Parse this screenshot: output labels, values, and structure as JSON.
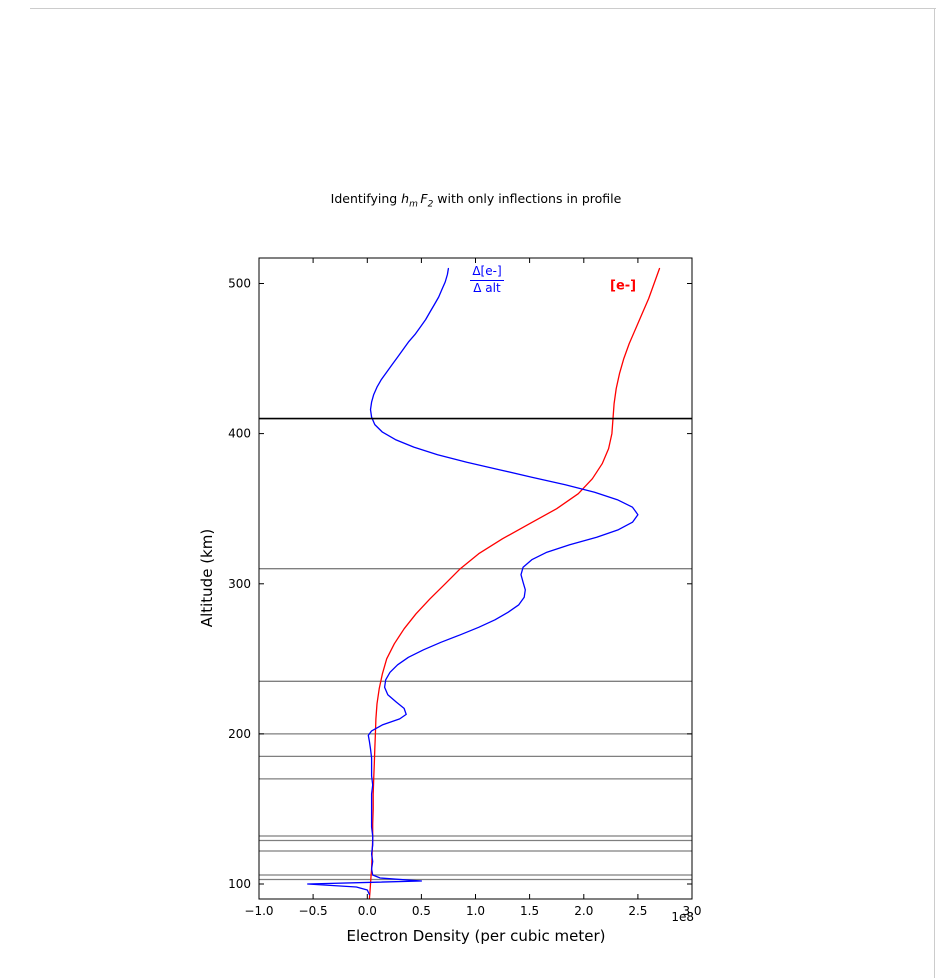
{
  "figure": {
    "title": {
      "prefix": "Identifying ",
      "var1": "h",
      "var1_sub": "m",
      "var2": "F",
      "var2_sub": "2",
      "suffix": " with only inflections in profile"
    },
    "xlabel": "Electron Density (per cubic meter)",
    "ylabel": "Altitude (km)",
    "offset_text": "1e8",
    "annotations": [
      {
        "name": "derivative-label",
        "numerator": "Δ[e-]",
        "denominator": "Δ alt",
        "color": "#0000ff"
      },
      {
        "name": "density-label",
        "text": "[e-]",
        "color": "#ff0000"
      }
    ]
  },
  "chart_data": {
    "type": "line",
    "title": "Identifying h_m F_2 with only inflections in profile",
    "xlabel": "Electron Density (per cubic meter)",
    "ylabel": "Altitude (km)",
    "x_offset_label": "1e8",
    "x_values_scale": "x values are in units of 1e8 electrons per cubic meter",
    "xlim": [
      -1.0,
      3.0
    ],
    "ylim": [
      90,
      517
    ],
    "x_ticks": [
      -1.0,
      -0.5,
      0.0,
      0.5,
      1.0,
      1.5,
      2.0,
      2.5,
      3.0
    ],
    "x_tick_labels": [
      "−1.0",
      "−0.5",
      "0.0",
      "0.5",
      "1.0",
      "1.5",
      "2.0",
      "2.5",
      "3.0"
    ],
    "y_ticks": [
      100,
      200,
      300,
      400,
      500
    ],
    "y_tick_labels": [
      "100",
      "200",
      "300",
      "400",
      "500"
    ],
    "grid": "horizontal reference lines only",
    "legend": "in-plot colored text annotations",
    "hmf2_altitude": 410,
    "inflection_altitudes": [
      310,
      235,
      200,
      185,
      170,
      132,
      129,
      122,
      106,
      103
    ],
    "series": [
      {
        "name": "[e-] electron density",
        "color": "#ff0000",
        "points": [
          [
            90,
            0.02
          ],
          [
            95,
            0.025
          ],
          [
            100,
            0.03
          ],
          [
            105,
            0.035
          ],
          [
            110,
            0.04
          ],
          [
            120,
            0.045
          ],
          [
            130,
            0.05
          ],
          [
            140,
            0.05
          ],
          [
            150,
            0.055
          ],
          [
            160,
            0.055
          ],
          [
            170,
            0.06
          ],
          [
            180,
            0.065
          ],
          [
            190,
            0.07
          ],
          [
            200,
            0.075
          ],
          [
            210,
            0.08
          ],
          [
            220,
            0.09
          ],
          [
            230,
            0.11
          ],
          [
            240,
            0.14
          ],
          [
            250,
            0.18
          ],
          [
            260,
            0.25
          ],
          [
            270,
            0.34
          ],
          [
            280,
            0.45
          ],
          [
            290,
            0.58
          ],
          [
            300,
            0.72
          ],
          [
            310,
            0.86
          ],
          [
            320,
            1.03
          ],
          [
            330,
            1.25
          ],
          [
            340,
            1.5
          ],
          [
            350,
            1.75
          ],
          [
            360,
            1.95
          ],
          [
            370,
            2.08
          ],
          [
            380,
            2.17
          ],
          [
            390,
            2.23
          ],
          [
            400,
            2.26
          ],
          [
            410,
            2.27
          ],
          [
            420,
            2.28
          ],
          [
            430,
            2.3
          ],
          [
            440,
            2.33
          ],
          [
            450,
            2.37
          ],
          [
            460,
            2.42
          ],
          [
            470,
            2.48
          ],
          [
            480,
            2.54
          ],
          [
            490,
            2.6
          ],
          [
            500,
            2.65
          ],
          [
            510,
            2.7
          ]
        ]
      },
      {
        "name": "Δ[e-]/Δ alt (scaled derivative)",
        "color": "#0000ff",
        "points": [
          [
            93,
            0.02
          ],
          [
            96,
            0.0
          ],
          [
            98,
            -0.1
          ],
          [
            100,
            -0.55
          ],
          [
            102,
            0.5
          ],
          [
            104,
            0.12
          ],
          [
            106,
            0.05
          ],
          [
            110,
            0.04
          ],
          [
            115,
            0.05
          ],
          [
            120,
            0.04
          ],
          [
            126,
            0.05
          ],
          [
            132,
            0.05
          ],
          [
            138,
            0.04
          ],
          [
            145,
            0.04
          ],
          [
            152,
            0.04
          ],
          [
            160,
            0.04
          ],
          [
            166,
            0.05
          ],
          [
            172,
            0.04
          ],
          [
            178,
            0.04
          ],
          [
            184,
            0.04
          ],
          [
            190,
            0.03
          ],
          [
            195,
            0.02
          ],
          [
            199,
            0.01
          ],
          [
            202,
            0.04
          ],
          [
            206,
            0.14
          ],
          [
            210,
            0.3
          ],
          [
            213,
            0.36
          ],
          [
            217,
            0.34
          ],
          [
            221,
            0.27
          ],
          [
            226,
            0.19
          ],
          [
            231,
            0.16
          ],
          [
            236,
            0.17
          ],
          [
            241,
            0.21
          ],
          [
            246,
            0.28
          ],
          [
            251,
            0.38
          ],
          [
            256,
            0.52
          ],
          [
            261,
            0.68
          ],
          [
            266,
            0.86
          ],
          [
            271,
            1.03
          ],
          [
            276,
            1.18
          ],
          [
            281,
            1.3
          ],
          [
            286,
            1.4
          ],
          [
            291,
            1.45
          ],
          [
            296,
            1.46
          ],
          [
            301,
            1.44
          ],
          [
            306,
            1.42
          ],
          [
            311,
            1.44
          ],
          [
            316,
            1.52
          ],
          [
            321,
            1.66
          ],
          [
            326,
            1.87
          ],
          [
            331,
            2.12
          ],
          [
            336,
            2.32
          ],
          [
            341,
            2.45
          ],
          [
            346,
            2.5
          ],
          [
            351,
            2.45
          ],
          [
            356,
            2.31
          ],
          [
            361,
            2.1
          ],
          [
            366,
            1.83
          ],
          [
            371,
            1.52
          ],
          [
            376,
            1.22
          ],
          [
            381,
            0.92
          ],
          [
            386,
            0.65
          ],
          [
            391,
            0.43
          ],
          [
            396,
            0.26
          ],
          [
            401,
            0.14
          ],
          [
            406,
            0.07
          ],
          [
            411,
            0.04
          ],
          [
            416,
            0.03
          ],
          [
            421,
            0.04
          ],
          [
            426,
            0.06
          ],
          [
            431,
            0.09
          ],
          [
            436,
            0.13
          ],
          [
            441,
            0.18
          ],
          [
            446,
            0.23
          ],
          [
            451,
            0.28
          ],
          [
            456,
            0.33
          ],
          [
            461,
            0.38
          ],
          [
            466,
            0.44
          ],
          [
            471,
            0.49
          ],
          [
            476,
            0.54
          ],
          [
            481,
            0.58
          ],
          [
            486,
            0.62
          ],
          [
            491,
            0.66
          ],
          [
            496,
            0.69
          ],
          [
            501,
            0.72
          ],
          [
            506,
            0.74
          ],
          [
            510,
            0.75
          ]
        ]
      }
    ],
    "colors": {
      "density": "#ff0000",
      "derivative": "#0000ff",
      "hmf2_line": "#000000",
      "inflection_line": "#7f7f7f"
    }
  }
}
